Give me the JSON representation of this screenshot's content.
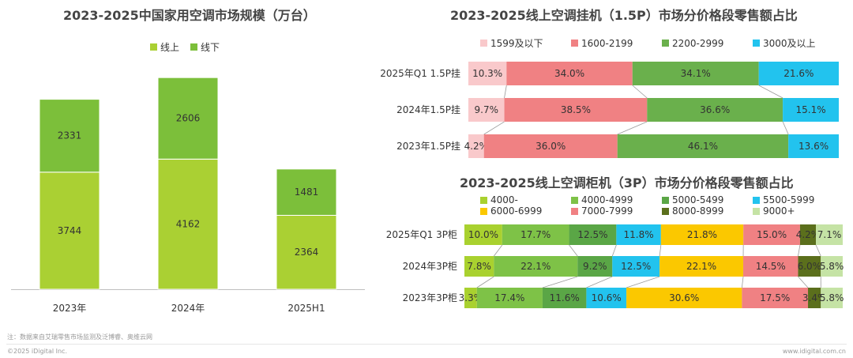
{
  "chart_data": [
    {
      "type": "bar",
      "stacked": true,
      "title": "2023-2025中国家用空调市场规模（万台）",
      "categories": [
        "2023年",
        "2024年",
        "2025H1"
      ],
      "series": [
        {
          "name": "线上",
          "values": [
            3744,
            4162,
            2364
          ],
          "color": "#aad033"
        },
        {
          "name": "线下",
          "values": [
            2331,
            2606,
            1481
          ],
          "color": "#7cbf3a"
        }
      ],
      "ylim": [
        0,
        7000
      ],
      "legend_position": "top-center",
      "grid": false
    },
    {
      "type": "bar",
      "orientation": "horizontal",
      "stacked_percent": true,
      "title": "2023-2025线上空调挂机（1.5P）市场分价格段零售额占比",
      "categories": [
        "2025年Q1 1.5P挂",
        "2024年1.5P挂",
        "2023年1.5P挂"
      ],
      "series": [
        {
          "name": "1599及以下",
          "values": [
            10.3,
            9.7,
            4.2
          ],
          "labels": [
            "10.3%",
            "9.7%",
            "4.2%"
          ],
          "color": "#f9c9cb"
        },
        {
          "name": "1600-2199",
          "values": [
            34.0,
            38.5,
            36.0
          ],
          "labels": [
            "34.0%",
            "38.5%",
            "36.0%"
          ],
          "color": "#f08183"
        },
        {
          "name": "2200-2999",
          "values": [
            34.1,
            36.6,
            46.1
          ],
          "labels": [
            "34.1%",
            "36.6%",
            "46.1%"
          ],
          "color": "#6ab04c"
        },
        {
          "name": "3000及以上",
          "values": [
            21.6,
            15.1,
            13.6
          ],
          "labels": [
            "21.6%",
            "15.1%",
            "13.6%"
          ],
          "color": "#22c3ee"
        }
      ],
      "legend_position": "top"
    },
    {
      "type": "bar",
      "orientation": "horizontal",
      "stacked_percent": true,
      "title": "2023-2025线上空调柜机（3P）市场分价格段零售额占比",
      "categories": [
        "2025年Q1 3P柜",
        "2024年3P柜",
        "2023年3P柜"
      ],
      "series": [
        {
          "name": "4000-",
          "values": [
            10.0,
            7.8,
            3.3
          ],
          "labels": [
            "10.0%",
            "7.8%",
            "3.3%"
          ],
          "color": "#a9d12f"
        },
        {
          "name": "4000-4999",
          "values": [
            17.7,
            22.1,
            17.4
          ],
          "labels": [
            "17.7%",
            "22.1%",
            "17.4%"
          ],
          "color": "#7ec247"
        },
        {
          "name": "5000-5499",
          "values": [
            12.5,
            9.2,
            11.6
          ],
          "labels": [
            "12.5%",
            "9.2%",
            "11.6%"
          ],
          "color": "#5aa646"
        },
        {
          "name": "5500-5999",
          "values": [
            11.8,
            12.5,
            10.6
          ],
          "labels": [
            "11.8%",
            "12.5%",
            "10.6%"
          ],
          "color": "#22c3ee"
        },
        {
          "name": "6000-6999",
          "values": [
            21.8,
            22.1,
            30.6
          ],
          "labels": [
            "21.8%",
            "22.1%",
            "30.6%"
          ],
          "color": "#fbc800"
        },
        {
          "name": "7000-7999",
          "values": [
            15.0,
            14.5,
            17.5
          ],
          "labels": [
            "15.0%",
            "14.5%",
            "17.5%"
          ],
          "color": "#f08183"
        },
        {
          "name": "8000-8999",
          "values": [
            4.2,
            6.0,
            3.4
          ],
          "labels": [
            "4.2%",
            "6.0%",
            "3.4%"
          ],
          "color": "#5b6f1c"
        },
        {
          "name": "9000+",
          "values": [
            7.1,
            5.8,
            5.8
          ],
          "labels": [
            "7.1%",
            "5.8%",
            "5.8%"
          ],
          "color": "#c5e3a5"
        }
      ],
      "legend_position": "top"
    }
  ],
  "footer": {
    "note": "注：数据来自艾瑞零售市场监测及泛博睿、奥维云网",
    "copyright": "©2025 iDigital Inc.",
    "website": "www.idigital.com.cn"
  }
}
